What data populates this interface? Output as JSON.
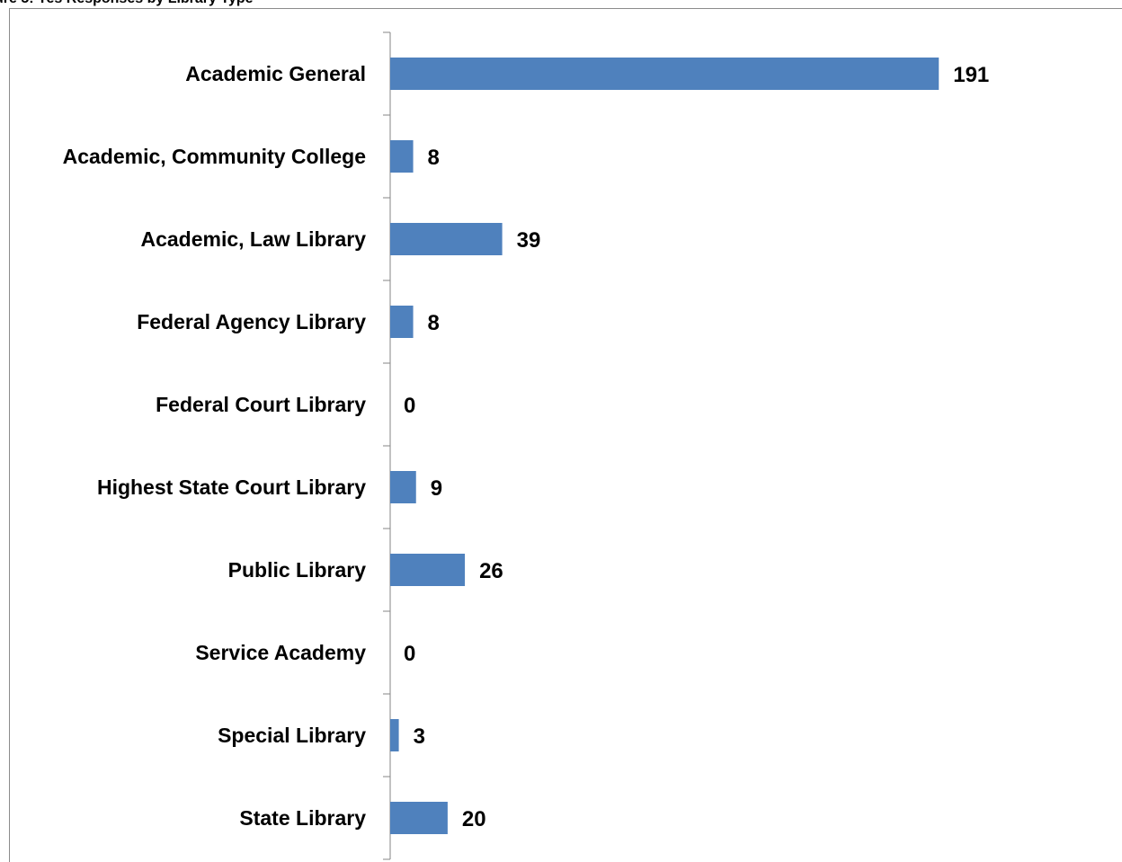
{
  "caption": "ure 5: Yes Responses by Library Type",
  "colors": {
    "bar": "#4f81bd",
    "axis": "#868686",
    "frame": "#8c8c8c"
  },
  "chart_data": {
    "type": "bar",
    "orientation": "horizontal",
    "title": "",
    "xlabel": "",
    "ylabel": "",
    "categories": [
      "Academic General",
      "Academic, Community College",
      "Academic, Law Library",
      "Federal Agency Library",
      "Federal Court Library",
      "Highest State Court Library",
      "Public Library",
      "Service Academy",
      "Special Library",
      "State Library"
    ],
    "values": [
      191,
      8,
      39,
      8,
      0,
      9,
      26,
      0,
      3,
      20
    ],
    "value_labels": [
      "191",
      "8",
      "39",
      "8",
      "0",
      "9",
      "26",
      "0",
      "3",
      "20"
    ],
    "xlim": [
      0,
      200
    ],
    "grid": false,
    "legend": "none",
    "data_labels": true
  }
}
